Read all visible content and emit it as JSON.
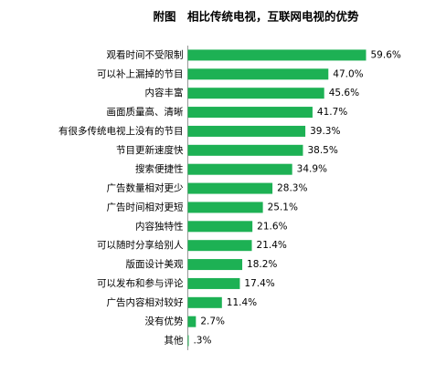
{
  "chart_data": {
    "type": "bar",
    "orientation": "horizontal",
    "title": "附图　相比传统电视，互联网电视的优势",
    "categories": [
      "观看时间不受限制",
      "可以补上漏掉的节目",
      "内容丰富",
      "画面质量高、清晰",
      "有很多传统电视上没有的节目",
      "节目更新速度快",
      "搜索便捷性",
      "广告数量相对更少",
      "广告时间相对更短",
      "内容独特性",
      "可以随时分享给别人",
      "版面设计美观",
      "可以发布和参与评论",
      "广告内容相对较好",
      "没有优势",
      "其他"
    ],
    "values": [
      59.6,
      47.0,
      45.6,
      41.7,
      39.3,
      38.5,
      34.9,
      28.3,
      25.1,
      21.6,
      21.4,
      18.2,
      17.4,
      11.4,
      2.7,
      0.3
    ],
    "value_labels": [
      "59.6%",
      "47.0%",
      "45.6%",
      "41.7%",
      "39.3%",
      "38.5%",
      "34.9%",
      "28.3%",
      "25.1%",
      "21.6%",
      "21.4%",
      "18.2%",
      "17.4%",
      "11.4%",
      "2.7%",
      ".3%"
    ],
    "color": "#1db154"
  }
}
